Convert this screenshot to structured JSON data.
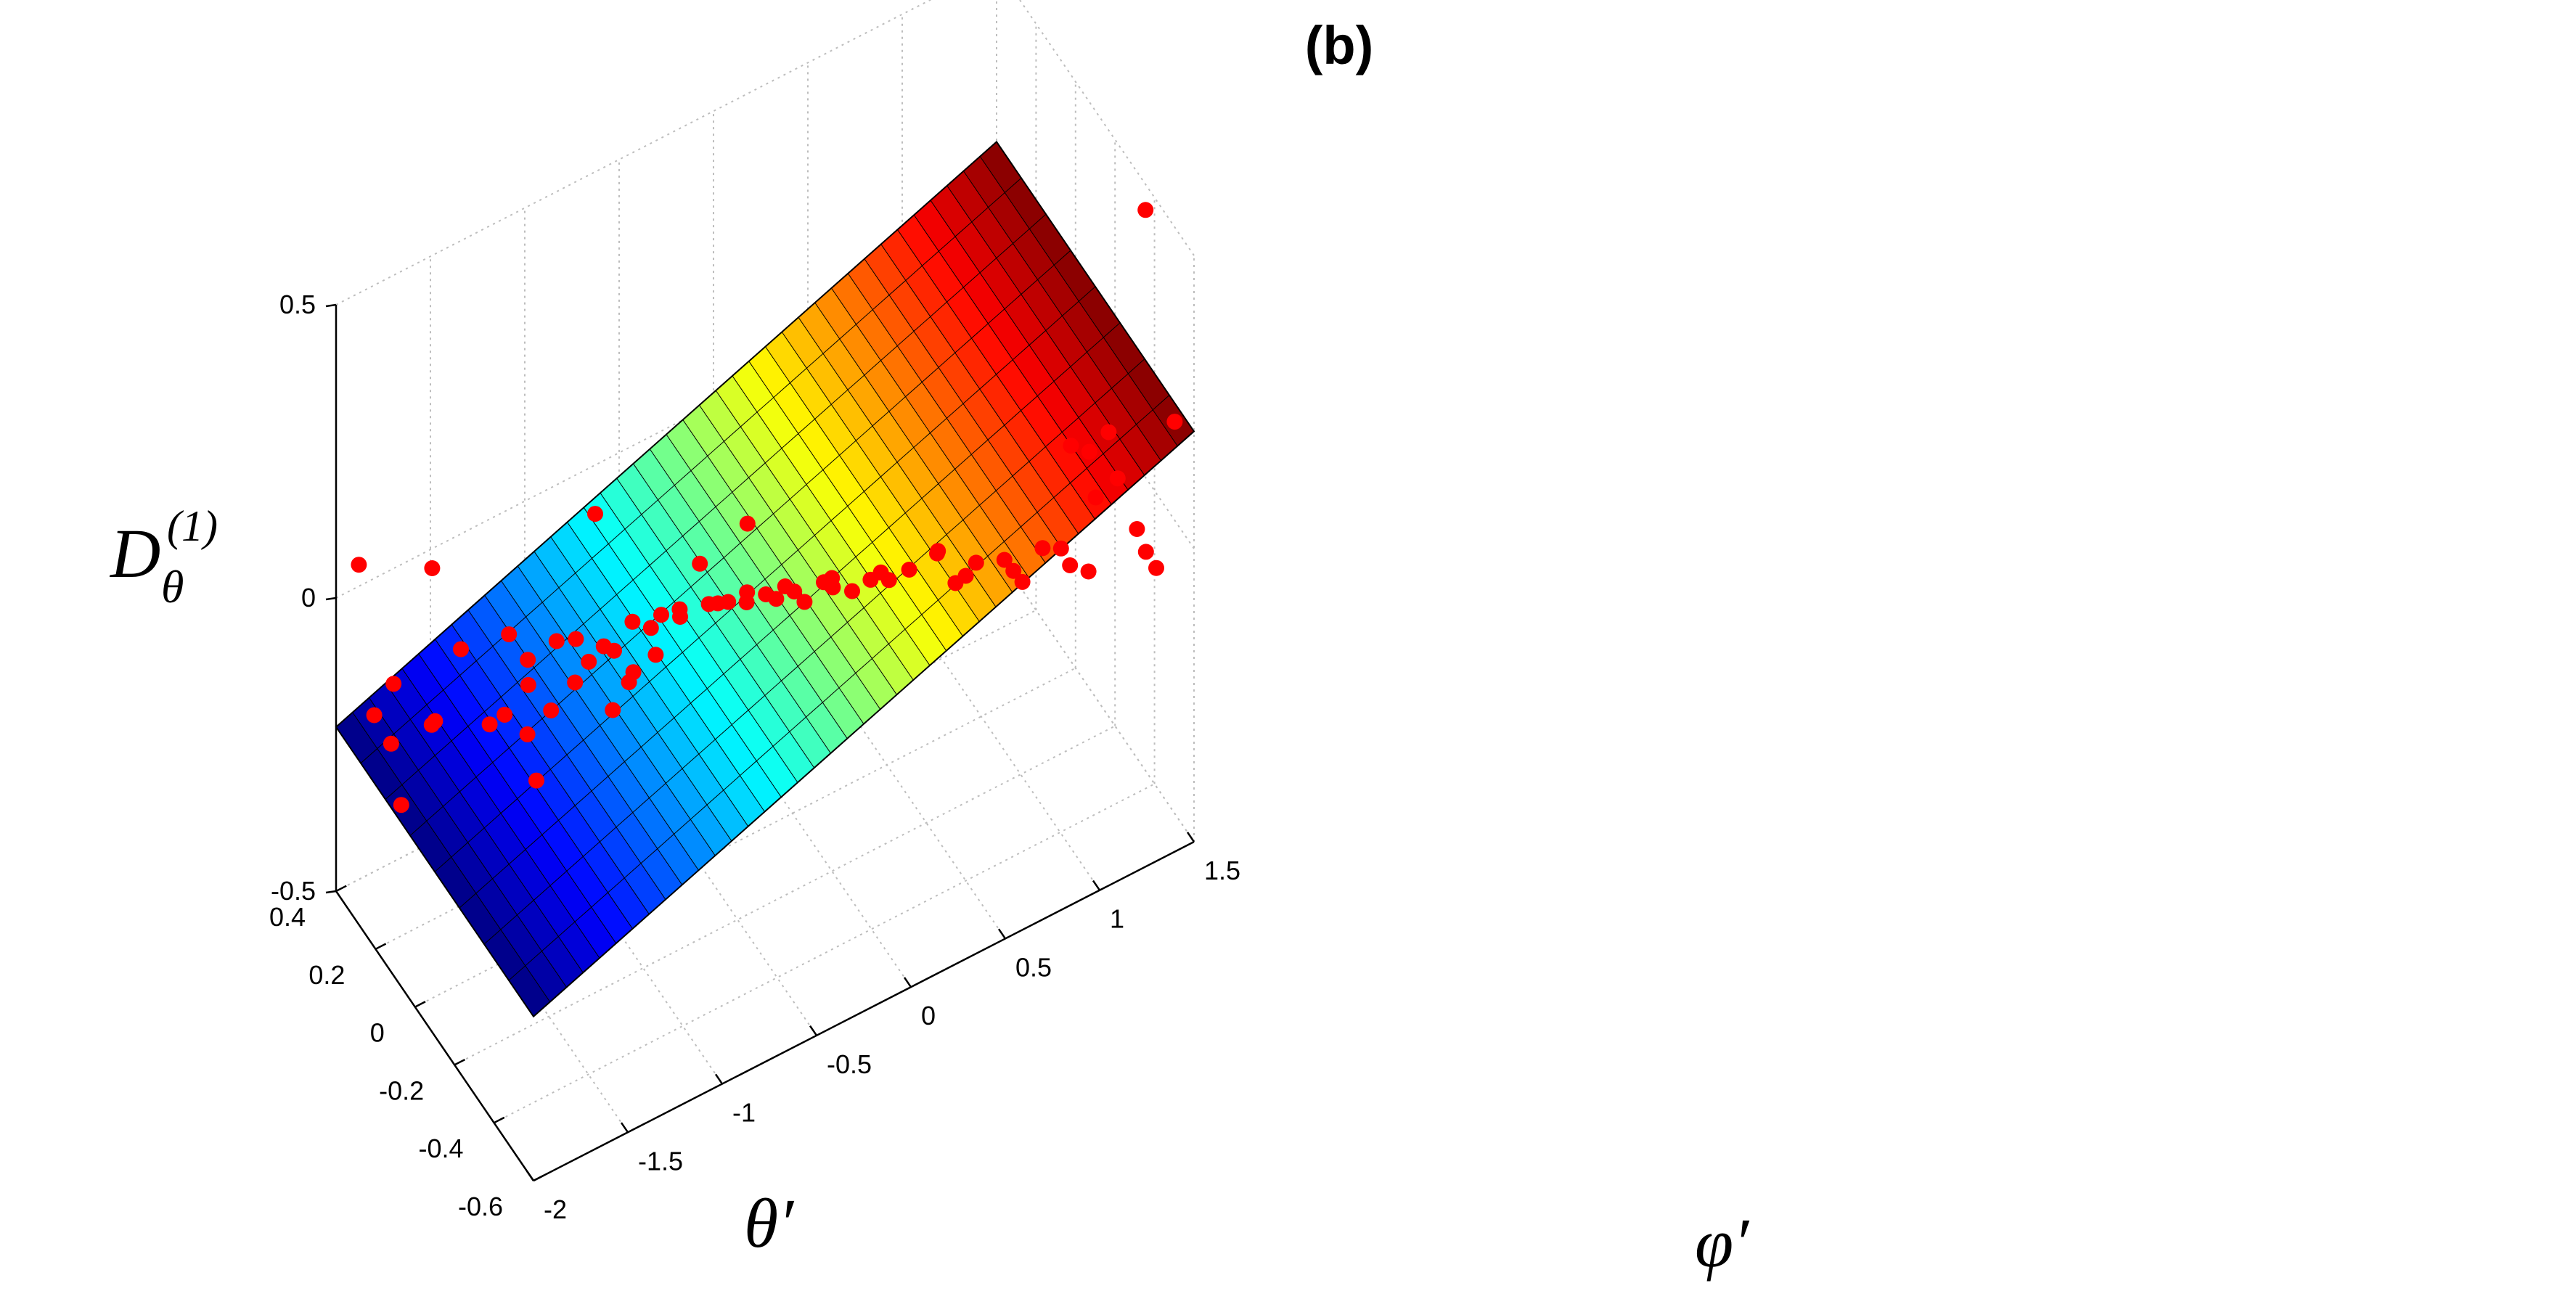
{
  "chart_data": {
    "type": "surface3d",
    "title": "(b)",
    "xlabel": "φ′",
    "ylabel": "θ′",
    "zlabel_main": "D",
    "zlabel_sub": "θ",
    "zlabel_sup": "(1)",
    "xlim": [
      -2,
      1.5
    ],
    "ylim": [
      -0.6,
      0.4
    ],
    "zlim": [
      -0.5,
      0.5
    ],
    "xticks": [
      -2,
      -1.5,
      -1,
      -0.5,
      0,
      0.5,
      1,
      1.5
    ],
    "xtick_labels": [
      "-2",
      "-1.5",
      "-1",
      "-0.5",
      "0",
      "0.5",
      "1",
      "1.5"
    ],
    "yticks": [
      -0.6,
      -0.4,
      -0.2,
      0,
      0.2,
      0.4
    ],
    "ytick_labels": [
      "-0.6",
      "-0.4",
      "-0.2",
      "0",
      "0.2",
      "0.4"
    ],
    "zticks": [
      -0.5,
      0,
      0.5
    ],
    "ztick_labels": [
      "-0.5",
      "0",
      "0.5"
    ],
    "grid": true,
    "surface": {
      "model": "plane",
      "x_range": [
        -2,
        1.5
      ],
      "y_range": [
        -0.6,
        0.4
      ],
      "corner_values": [
        {
          "x": -2,
          "y": 0.4,
          "z": -0.22
        },
        {
          "x": 1.5,
          "y": 0.4,
          "z": 0.2
        },
        {
          "x": 1.5,
          "y": -0.6,
          "z": 0.2
        },
        {
          "x": -2,
          "y": -0.6,
          "z": -0.22
        }
      ],
      "colormap": "jet",
      "color_axis": "x",
      "grid_lines": 40
    },
    "points_color": "#ff0000",
    "points": [
      {
        "x": -1.9,
        "y": 0.38,
        "z": 0.05
      },
      {
        "x": -1.85,
        "y": 0.35,
        "z": -0.2
      },
      {
        "x": -1.8,
        "y": 0.3,
        "z": -0.13
      },
      {
        "x": -1.78,
        "y": 0.28,
        "z": -0.33
      },
      {
        "x": -1.75,
        "y": 0.36,
        "z": -0.27
      },
      {
        "x": -1.7,
        "y": 0.2,
        "z": 0.1
      },
      {
        "x": -1.65,
        "y": 0.25,
        "z": -0.2
      },
      {
        "x": -1.6,
        "y": 0.15,
        "z": -0.03
      },
      {
        "x": -1.58,
        "y": 0.3,
        "z": -0.23
      },
      {
        "x": -1.5,
        "y": 0.1,
        "z": -0.15
      },
      {
        "x": -1.45,
        "y": 0.05,
        "z": 0.02
      },
      {
        "x": -1.4,
        "y": 0.0,
        "z": -0.05
      },
      {
        "x": -1.4,
        "y": 0.12,
        "z": -0.16
      },
      {
        "x": -1.35,
        "y": 0.05,
        "z": -0.04
      },
      {
        "x": -1.3,
        "y": -0.02,
        "z": -0.1
      },
      {
        "x": -1.3,
        "y": 0.1,
        "z": -0.2
      },
      {
        "x": -1.25,
        "y": 0.0,
        "z": 0.0
      },
      {
        "x": -1.2,
        "y": -0.05,
        "z": 0.02
      },
      {
        "x": -1.2,
        "y": 0.15,
        "z": -0.32
      },
      {
        "x": -1.15,
        "y": -0.1,
        "z": 0.25
      },
      {
        "x": -1.1,
        "y": -0.02,
        "z": -0.05
      },
      {
        "x": -1.1,
        "y": 0.05,
        "z": -0.12
      },
      {
        "x": -1.05,
        "y": -0.1,
        "z": 0.0
      },
      {
        "x": -1.0,
        "y": 0.0,
        "z": -0.05
      },
      {
        "x": -1.0,
        "y": -0.15,
        "z": -0.02
      },
      {
        "x": -0.95,
        "y": -0.08,
        "z": -0.08
      },
      {
        "x": -0.9,
        "y": -0.05,
        "z": 0.0
      },
      {
        "x": -0.9,
        "y": 0.05,
        "z": -0.2
      },
      {
        "x": -0.85,
        "y": -0.12,
        "z": -0.03
      },
      {
        "x": -0.8,
        "y": -0.1,
        "z": 0.02
      },
      {
        "x": -0.75,
        "y": 0.0,
        "z": -0.06
      },
      {
        "x": -0.7,
        "y": -0.2,
        "z": 0.14
      },
      {
        "x": -0.7,
        "y": -0.1,
        "z": 0.0
      },
      {
        "x": -0.65,
        "y": -0.05,
        "z": -0.02
      },
      {
        "x": -0.6,
        "y": -0.15,
        "z": 0.03
      },
      {
        "x": -0.55,
        "y": -0.2,
        "z": 0.05
      },
      {
        "x": -0.5,
        "y": -0.1,
        "z": -0.01
      },
      {
        "x": -0.5,
        "y": -0.25,
        "z": 0.2
      },
      {
        "x": -0.45,
        "y": -0.2,
        "z": 0.05
      },
      {
        "x": -0.4,
        "y": -0.15,
        "z": 0.0
      },
      {
        "x": -0.4,
        "y": -0.3,
        "z": 0.08
      },
      {
        "x": -0.35,
        "y": -0.2,
        "z": 0.03
      },
      {
        "x": -0.3,
        "y": -0.25,
        "z": 0.06
      },
      {
        "x": -0.25,
        "y": -0.3,
        "z": 0.05
      },
      {
        "x": -0.2,
        "y": -0.2,
        "z": 0.01
      },
      {
        "x": -0.2,
        "y": -0.35,
        "z": 0.1
      },
      {
        "x": -0.1,
        "y": -0.3,
        "z": 0.05
      },
      {
        "x": -0.05,
        "y": -0.35,
        "z": 0.06
      },
      {
        "x": 0.0,
        "y": -0.2,
        "z": 0.0
      },
      {
        "x": 0.05,
        "y": -0.4,
        "z": 0.1
      },
      {
        "x": 0.1,
        "y": -0.3,
        "z": 0.03
      },
      {
        "x": 0.2,
        "y": -0.4,
        "z": 0.08
      },
      {
        "x": 0.25,
        "y": -0.25,
        "z": -0.02
      },
      {
        "x": 0.3,
        "y": -0.45,
        "z": 0.12
      },
      {
        "x": 0.4,
        "y": -0.35,
        "z": 0.05
      },
      {
        "x": 0.45,
        "y": -0.5,
        "z": 0.1
      },
      {
        "x": 0.5,
        "y": -0.4,
        "z": 0.02
      },
      {
        "x": 0.55,
        "y": -0.3,
        "z": -0.05
      },
      {
        "x": 0.6,
        "y": -0.5,
        "z": 0.08
      },
      {
        "x": 0.7,
        "y": -0.45,
        "z": 0.02
      },
      {
        "x": 0.75,
        "y": -0.55,
        "z": 0.1
      },
      {
        "x": 0.8,
        "y": -0.4,
        "z": -0.04
      },
      {
        "x": 0.9,
        "y": -0.5,
        "z": 0.05
      },
      {
        "x": 0.9,
        "y": -0.55,
        "z": 0.25
      },
      {
        "x": 1.0,
        "y": -0.45,
        "z": -0.02
      },
      {
        "x": 1.0,
        "y": -0.58,
        "z": 0.16
      },
      {
        "x": 1.05,
        "y": -0.5,
        "z": 0.19
      },
      {
        "x": 1.1,
        "y": -0.55,
        "z": 0.24
      },
      {
        "x": 1.15,
        "y": -0.4,
        "z": -0.08
      },
      {
        "x": 1.2,
        "y": -0.5,
        "z": 0.12
      },
      {
        "x": 1.25,
        "y": -0.55,
        "z": 0.05
      },
      {
        "x": 1.3,
        "y": -0.6,
        "z": 0.0
      },
      {
        "x": 1.35,
        "y": -0.5,
        "z": -0.03
      },
      {
        "x": 1.4,
        "y": -0.45,
        "z": 0.52
      },
      {
        "x": 1.45,
        "y": -0.55,
        "z": 0.2
      }
    ]
  }
}
